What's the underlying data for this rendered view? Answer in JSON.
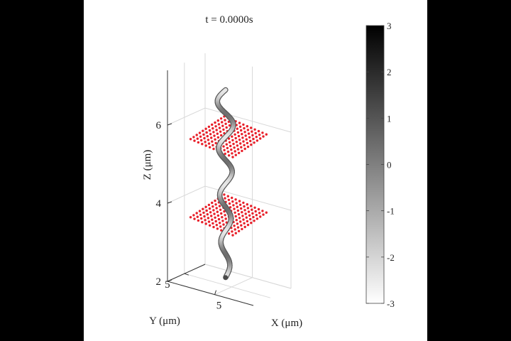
{
  "chart_data": {
    "type": "3d-line",
    "title": "t = 0.0000s",
    "axes": {
      "x": {
        "label": "X (μm)",
        "ticks": [
          5
        ]
      },
      "y": {
        "label": "Y (μm)",
        "ticks": [
          5
        ]
      },
      "z": {
        "label": "Z (μm)",
        "ticks": [
          2,
          4,
          6
        ],
        "range": [
          2,
          7.4
        ]
      }
    },
    "colorbar": {
      "range": [
        -3,
        3
      ],
      "ticks": [
        "3",
        "2",
        "1",
        "0",
        "-1",
        "-2",
        "-3"
      ],
      "colormap": "gray",
      "color_low": "#ffffff",
      "color_high": "#000000"
    },
    "point_planes": [
      {
        "z": 5.8,
        "grid": 12,
        "color": "#e8202a"
      },
      {
        "z": 3.8,
        "grid": 12,
        "color": "#e8202a"
      }
    ],
    "helix_filament": {
      "z_range": [
        2.2,
        7.0
      ],
      "turns": 4,
      "color_light": "#e8e8e8",
      "color_dark": "#4a4a4a"
    },
    "grid": true
  }
}
